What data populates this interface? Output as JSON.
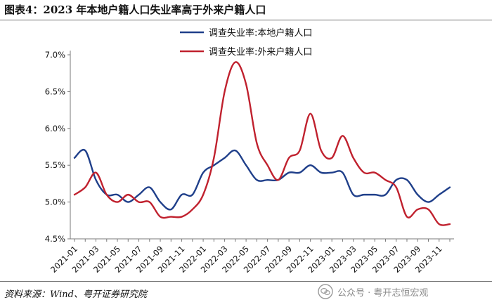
{
  "header": {
    "title": "图表4：2023 年本地户籍人口失业率高于外来户籍人口"
  },
  "footer": {
    "source": "资料来源：Wind、粤开证券研究院",
    "watermark": "公众号 · 粤开志恒宏观"
  },
  "chart_data": {
    "type": "line",
    "title": "图表4：2023 年本地户籍人口失业率高于外来户籍人口",
    "xlabel": "",
    "ylabel": "",
    "ylim": [
      4.5,
      7.0
    ],
    "yticks": [
      "7.0%",
      "6.5%",
      "6.0%",
      "5.5%",
      "5.0%",
      "4.5%"
    ],
    "ytick_values": [
      7.0,
      6.5,
      6.0,
      5.5,
      5.0,
      4.5
    ],
    "grid": false,
    "legend_position": "top-center",
    "xtick_labels": [
      "2021-01",
      "2021-03",
      "2021-05",
      "2021-07",
      "2021-09",
      "2021-11",
      "2022-01",
      "2022-03",
      "2022-05",
      "2022-07",
      "2022-09",
      "2022-11",
      "2023-01",
      "2023-03",
      "2023-05",
      "2023-07",
      "2023-09",
      "2023-11"
    ],
    "x": [
      "2021-01",
      "2021-02",
      "2021-03",
      "2021-04",
      "2021-05",
      "2021-06",
      "2021-07",
      "2021-08",
      "2021-09",
      "2021-10",
      "2021-11",
      "2021-12",
      "2022-01",
      "2022-02",
      "2022-03",
      "2022-04",
      "2022-05",
      "2022-06",
      "2022-07",
      "2022-08",
      "2022-09",
      "2022-10",
      "2022-11",
      "2022-12",
      "2023-01",
      "2023-02",
      "2023-03",
      "2023-04",
      "2023-05",
      "2023-06",
      "2023-07",
      "2023-08",
      "2023-09",
      "2023-10",
      "2023-11",
      "2023-12"
    ],
    "series": [
      {
        "name": "调查失业率:本地户籍人口",
        "color": "#1f3f8a",
        "values": [
          5.6,
          5.7,
          5.3,
          5.1,
          5.1,
          5.0,
          5.1,
          5.2,
          5.0,
          4.9,
          5.1,
          5.1,
          5.4,
          5.5,
          5.6,
          5.7,
          5.5,
          5.3,
          5.3,
          5.3,
          5.4,
          5.4,
          5.5,
          5.4,
          5.4,
          5.4,
          5.1,
          5.1,
          5.1,
          5.1,
          5.3,
          5.3,
          5.1,
          5.0,
          5.1,
          5.2
        ]
      },
      {
        "name": "调查失业率:外来户籍人口",
        "color": "#c0212e",
        "values": [
          5.1,
          5.2,
          5.4,
          5.1,
          5.0,
          5.1,
          5.0,
          5.0,
          4.8,
          4.8,
          4.8,
          4.9,
          5.1,
          5.6,
          6.5,
          6.9,
          6.6,
          5.8,
          5.5,
          5.3,
          5.6,
          5.7,
          6.2,
          5.7,
          5.6,
          5.9,
          5.6,
          5.4,
          5.4,
          5.3,
          5.2,
          4.8,
          4.9,
          4.9,
          4.7,
          4.7
        ]
      }
    ]
  }
}
